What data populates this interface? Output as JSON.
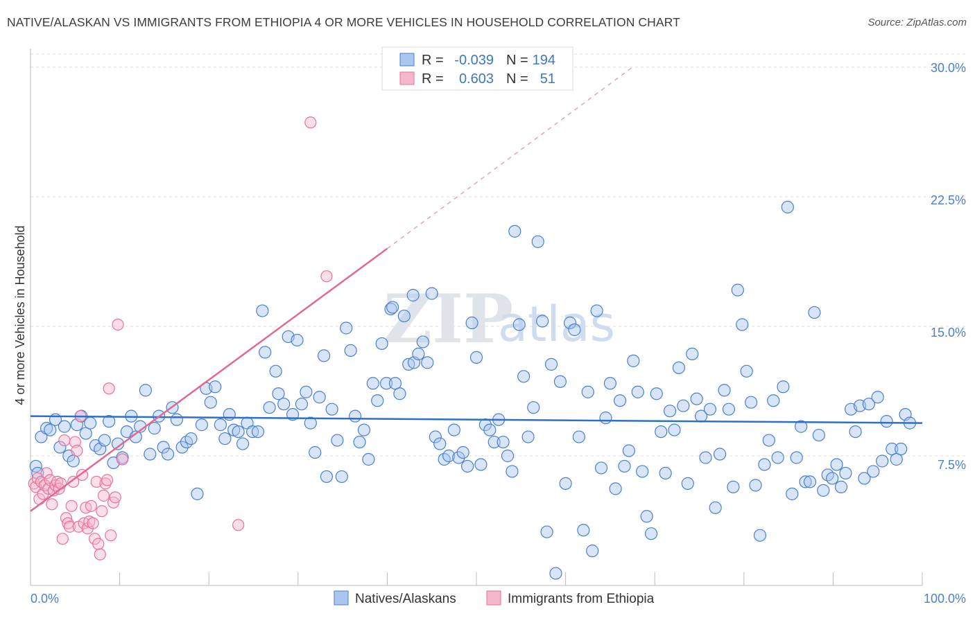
{
  "title": "NATIVE/ALASKAN VS IMMIGRANTS FROM ETHIOPIA 4 OR MORE VEHICLES IN HOUSEHOLD CORRELATION CHART",
  "source": "Source: ZipAtlas.com",
  "watermark": {
    "zip": "ZIP",
    "atlas": "atlas"
  },
  "colors": {
    "blue": "#4a7fcf",
    "blue_fill": "#a9c6ee",
    "blue_line": "#2f6fcc",
    "pink": "#e8729a",
    "pink_fill": "#f4b6cb",
    "pink_line": "#e0698f",
    "grid": "#dddddd"
  },
  "legend": {
    "rows": [
      {
        "r_label": "R =",
        "r_value": "-0.039",
        "n_label": "N =",
        "n_value": "194"
      },
      {
        "r_label": "R =",
        "r_value": "0.603",
        "n_label": "N =",
        "n_value": "51"
      }
    ]
  },
  "bottom_legend": [
    "Natives/Alaskans",
    "Immigrants from Ethiopia"
  ],
  "chart_data": {
    "type": "scatter",
    "title": "NATIVE/ALASKAN VS IMMIGRANTS FROM ETHIOPIA 4 OR MORE VEHICLES IN HOUSEHOLD CORRELATION CHART",
    "xlabel": "",
    "ylabel": "4 or more Vehicles in Household",
    "xlim": [
      0,
      100
    ],
    "ylim": [
      0,
      30.0
    ],
    "x_tick_labels": [
      "0.0%",
      "100.0%"
    ],
    "y_ticks": [
      7.5,
      15.0,
      22.5,
      30.0
    ],
    "y_tick_labels": [
      "7.5%",
      "15.0%",
      "22.5%",
      "30.0%"
    ],
    "series": [
      {
        "name": "Natives/Alaskans",
        "trend": {
          "x0": 0,
          "y0": 9.8,
          "x1": 100,
          "y1": 9.4
        },
        "points": [
          [
            0.6,
            6.9
          ],
          [
            0.8,
            6.5
          ],
          [
            1.2,
            8.6
          ],
          [
            1.8,
            9.1
          ],
          [
            2.2,
            9.0
          ],
          [
            2.8,
            9.6
          ],
          [
            3.3,
            8.0
          ],
          [
            3.8,
            9.2
          ],
          [
            4.3,
            7.5
          ],
          [
            4.8,
            7.2
          ],
          [
            5.2,
            9.3
          ],
          [
            5.7,
            9.8
          ],
          [
            6.2,
            8.8
          ],
          [
            6.7,
            9.4
          ],
          [
            7.3,
            8.1
          ],
          [
            7.8,
            7.9
          ],
          [
            8.3,
            8.4
          ],
          [
            8.8,
            9.5
          ],
          [
            9.3,
            7.1
          ],
          [
            9.8,
            8.2
          ],
          [
            10.3,
            7.4
          ],
          [
            10.8,
            8.9
          ],
          [
            11.3,
            9.8
          ],
          [
            11.8,
            8.6
          ],
          [
            12.3,
            9.2
          ],
          [
            12.9,
            11.3
          ],
          [
            13.4,
            7.6
          ],
          [
            13.9,
            9.1
          ],
          [
            14.4,
            9.8
          ],
          [
            14.9,
            8.0
          ],
          [
            15.4,
            7.6
          ],
          [
            15.9,
            10.3
          ],
          [
            16.4,
            9.6
          ],
          [
            17.0,
            8.0
          ],
          [
            17.5,
            8.3
          ],
          [
            18.0,
            8.5
          ],
          [
            18.7,
            5.3
          ],
          [
            19.2,
            9.3
          ],
          [
            19.7,
            11.4
          ],
          [
            20.2,
            10.6
          ],
          [
            20.7,
            11.5
          ],
          [
            21.3,
            9.3
          ],
          [
            21.8,
            8.5
          ],
          [
            22.3,
            9.9
          ],
          [
            22.8,
            9.0
          ],
          [
            23.3,
            8.9
          ],
          [
            23.8,
            8.2
          ],
          [
            24.3,
            9.4
          ],
          [
            24.9,
            8.9
          ],
          [
            25.5,
            8.9
          ],
          [
            26.0,
            15.9
          ],
          [
            26.3,
            13.5
          ],
          [
            26.8,
            10.3
          ],
          [
            27.5,
            12.4
          ],
          [
            27.8,
            11.1
          ],
          [
            28.4,
            10.5
          ],
          [
            28.9,
            14.4
          ],
          [
            29.4,
            9.9
          ],
          [
            29.9,
            14.2
          ],
          [
            30.4,
            10.5
          ],
          [
            30.9,
            11.2
          ],
          [
            31.4,
            9.4
          ],
          [
            31.9,
            7.7
          ],
          [
            32.4,
            10.9
          ],
          [
            32.9,
            13.3
          ],
          [
            33.2,
            6.3
          ],
          [
            33.8,
            10.2
          ],
          [
            34.4,
            8.4
          ],
          [
            34.9,
            6.3
          ],
          [
            35.4,
            14.9
          ],
          [
            35.9,
            13.6
          ],
          [
            36.4,
            9.8
          ],
          [
            36.9,
            8.3
          ],
          [
            37.4,
            9.0
          ],
          [
            37.9,
            7.3
          ],
          [
            38.4,
            11.7
          ],
          [
            38.9,
            10.7
          ],
          [
            39.4,
            14.0
          ],
          [
            39.9,
            11.7
          ],
          [
            40.4,
            16.0
          ],
          [
            40.6,
            16.1
          ],
          [
            40.9,
            11.7
          ],
          [
            41.4,
            11.1
          ],
          [
            41.9,
            15.6
          ],
          [
            42.4,
            12.8
          ],
          [
            42.9,
            16.8
          ],
          [
            43.0,
            12.9
          ],
          [
            43.5,
            13.4
          ],
          [
            44.0,
            14.1
          ],
          [
            44.5,
            12.9
          ],
          [
            45.0,
            16.9
          ],
          [
            45.4,
            8.6
          ],
          [
            45.9,
            8.2
          ],
          [
            46.4,
            7.3
          ],
          [
            46.9,
            7.5
          ],
          [
            47.5,
            9.0
          ],
          [
            48.0,
            7.4
          ],
          [
            48.5,
            7.7
          ],
          [
            49.0,
            6.9
          ],
          [
            49.5,
            15.2
          ],
          [
            50.0,
            13.2
          ],
          [
            50.5,
            7.0
          ],
          [
            51.0,
            9.3
          ],
          [
            51.5,
            9.0
          ],
          [
            52.0,
            8.3
          ],
          [
            52.5,
            9.6
          ],
          [
            53.0,
            8.3
          ],
          [
            53.5,
            7.5
          ],
          [
            54.0,
            6.6
          ],
          [
            54.3,
            20.5
          ],
          [
            54.8,
            15.1
          ],
          [
            55.3,
            12.1
          ],
          [
            55.8,
            8.6
          ],
          [
            56.4,
            10.3
          ],
          [
            56.9,
            19.9
          ],
          [
            57.4,
            15.3
          ],
          [
            57.9,
            3.1
          ],
          [
            58.4,
            12.8
          ],
          [
            58.9,
            0.7
          ],
          [
            59.4,
            11.8
          ],
          [
            60.0,
            5.9
          ],
          [
            60.5,
            15.2
          ],
          [
            61.0,
            14.8
          ],
          [
            61.5,
            8.6
          ],
          [
            62.0,
            3.2
          ],
          [
            62.5,
            11.2
          ],
          [
            63.0,
            2.0
          ],
          [
            63.5,
            15.9
          ],
          [
            64.0,
            6.8
          ],
          [
            64.5,
            9.7
          ],
          [
            65.0,
            11.7
          ],
          [
            65.6,
            5.6
          ],
          [
            66.1,
            10.7
          ],
          [
            66.6,
            6.9
          ],
          [
            67.1,
            7.8
          ],
          [
            67.6,
            13.0
          ],
          [
            68.1,
            11.2
          ],
          [
            68.6,
            6.6
          ],
          [
            69.1,
            4.0
          ],
          [
            69.6,
            3.0
          ],
          [
            70.2,
            11.1
          ],
          [
            70.7,
            8.9
          ],
          [
            71.2,
            6.5
          ],
          [
            71.7,
            10.1
          ],
          [
            72.2,
            9.0
          ],
          [
            72.7,
            12.6
          ],
          [
            73.2,
            10.4
          ],
          [
            73.7,
            5.9
          ],
          [
            74.2,
            13.4
          ],
          [
            74.7,
            10.8
          ],
          [
            75.2,
            9.8
          ],
          [
            75.7,
            7.4
          ],
          [
            76.2,
            10.2
          ],
          [
            76.8,
            4.5
          ],
          [
            77.3,
            7.6
          ],
          [
            77.8,
            11.3
          ],
          [
            78.3,
            10.2
          ],
          [
            78.8,
            5.7
          ],
          [
            79.3,
            17.1
          ],
          [
            79.8,
            15.1
          ],
          [
            80.3,
            12.4
          ],
          [
            80.8,
            10.6
          ],
          [
            81.3,
            5.8
          ],
          [
            81.8,
            2.9
          ],
          [
            82.3,
            7.0
          ],
          [
            82.8,
            8.4
          ],
          [
            83.3,
            10.7
          ],
          [
            83.8,
            7.4
          ],
          [
            84.4,
            11.5
          ],
          [
            84.9,
            21.9
          ],
          [
            85.4,
            5.3
          ],
          [
            85.9,
            7.4
          ],
          [
            86.4,
            9.2
          ],
          [
            86.9,
            6.0
          ],
          [
            87.4,
            6.0
          ],
          [
            87.9,
            15.8
          ],
          [
            88.4,
            8.7
          ],
          [
            88.9,
            5.5
          ],
          [
            89.4,
            6.4
          ],
          [
            89.9,
            6.2
          ],
          [
            90.4,
            7.0
          ],
          [
            90.9,
            5.7
          ],
          [
            91.4,
            6.5
          ],
          [
            92.0,
            10.2
          ],
          [
            92.5,
            8.9
          ],
          [
            93.0,
            10.4
          ],
          [
            93.5,
            6.2
          ],
          [
            94.0,
            10.5
          ],
          [
            94.5,
            6.6
          ],
          [
            95.0,
            10.9
          ],
          [
            95.5,
            7.2
          ],
          [
            96.0,
            9.5
          ],
          [
            96.6,
            7.9
          ],
          [
            97.1,
            7.3
          ],
          [
            97.6,
            7.9
          ],
          [
            98.1,
            9.9
          ],
          [
            98.6,
            9.4
          ]
        ]
      },
      {
        "name": "Immigrants from Ethiopia",
        "trend": {
          "x0": 0,
          "y0": 4.3,
          "x1": 40.0,
          "y1": 19.5
        },
        "trend_dashed": {
          "x0": 40.0,
          "y0": 19.5,
          "x1": 67.5,
          "y1": 30.0
        },
        "points": [
          [
            0.4,
            5.9
          ],
          [
            0.6,
            5.7
          ],
          [
            0.8,
            6.2
          ],
          [
            1.0,
            5.0
          ],
          [
            1.2,
            6.0
          ],
          [
            1.4,
            5.3
          ],
          [
            1.6,
            5.8
          ],
          [
            1.8,
            6.5
          ],
          [
            2.0,
            5.6
          ],
          [
            2.2,
            6.1
          ],
          [
            2.4,
            4.7
          ],
          [
            2.6,
            5.5
          ],
          [
            2.8,
            5.8
          ],
          [
            3.0,
            6.0
          ],
          [
            3.2,
            5.6
          ],
          [
            3.4,
            5.9
          ],
          [
            3.6,
            2.7
          ],
          [
            3.8,
            8.4
          ],
          [
            4.0,
            3.9
          ],
          [
            4.2,
            3.6
          ],
          [
            4.4,
            3.4
          ],
          [
            4.6,
            4.6
          ],
          [
            4.8,
            6.0
          ],
          [
            5.0,
            8.3
          ],
          [
            5.2,
            7.8
          ],
          [
            5.4,
            3.4
          ],
          [
            5.6,
            9.8
          ],
          [
            5.8,
            6.4
          ],
          [
            6.0,
            3.6
          ],
          [
            6.2,
            4.5
          ],
          [
            6.4,
            3.3
          ],
          [
            6.6,
            3.7
          ],
          [
            6.8,
            4.6
          ],
          [
            7.0,
            3.6
          ],
          [
            7.2,
            2.7
          ],
          [
            7.4,
            6.0
          ],
          [
            7.6,
            2.4
          ],
          [
            7.8,
            1.8
          ],
          [
            8.0,
            4.3
          ],
          [
            8.2,
            5.2
          ],
          [
            8.4,
            5.9
          ],
          [
            8.6,
            6.1
          ],
          [
            8.8,
            11.4
          ],
          [
            9.0,
            2.9
          ],
          [
            9.3,
            4.8
          ],
          [
            9.5,
            5.1
          ],
          [
            9.8,
            15.1
          ],
          [
            10.3,
            7.3
          ],
          [
            23.3,
            3.5
          ],
          [
            31.4,
            26.8
          ],
          [
            33.2,
            17.9
          ]
        ]
      }
    ]
  }
}
